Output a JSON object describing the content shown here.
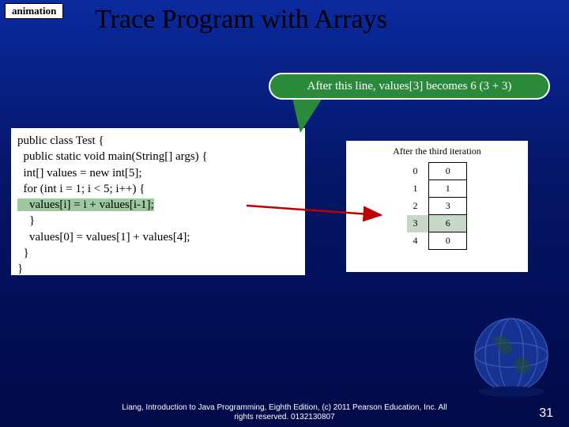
{
  "tag": "animation",
  "title": "Trace Program with Arrays",
  "callout": "After this line, values[3] becomes 6 (3 + 3)",
  "code": {
    "l1": "public class Test {",
    "l2": "  public static void main(String[] args) {",
    "l3": "  int[] values = new int[5];",
    "l4": "  for (int i = 1; i < 5; i++) {",
    "l5": "    values[i] = i + values[i-1];",
    "l6": "    }",
    "l7": "    values[0] = values[1] + values[4];",
    "l8": "  }",
    "l9": "}"
  },
  "array": {
    "caption": "After the third iteration",
    "rows": [
      {
        "idx": "0",
        "val": "0",
        "hl": false
      },
      {
        "idx": "1",
        "val": "1",
        "hl": false
      },
      {
        "idx": "2",
        "val": "3",
        "hl": false
      },
      {
        "idx": "3",
        "val": "6",
        "hl": true
      },
      {
        "idx": "4",
        "val": "0",
        "hl": false
      }
    ]
  },
  "footer1": "Liang, Introduction to Java Programming, Eighth Edition, (c) 2011 Pearson Education, Inc. All",
  "footer2": "rights reserved. 0132130807",
  "page": "31"
}
